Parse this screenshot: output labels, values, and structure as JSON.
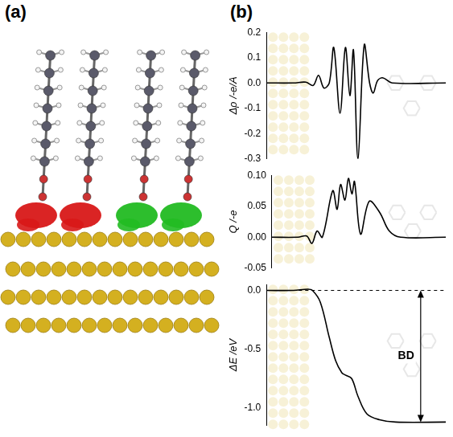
{
  "panel_labels": [
    "(a)",
    "(b)"
  ],
  "chart_data": [
    {
      "type": "line",
      "y_label": "Δρ /-e/A",
      "xlim": [
        0,
        100
      ],
      "ylim": [
        -0.3,
        0.2
      ],
      "yticks": [
        -0.3,
        -0.2,
        -0.1,
        {
          "value": 0,
          "label": "0.0"
        },
        0.1,
        0.2
      ],
      "tick_labels": "y",
      "grid": false,
      "series": [
        {
          "color": "#000000",
          "line_style": "solid",
          "x": [
            0,
            15,
            22,
            26,
            29,
            32,
            35,
            37.5,
            41,
            44,
            46.5,
            48.5,
            51,
            54.5,
            57.5,
            59.5,
            62,
            65,
            70,
            100
          ],
          "values": [
            0,
            0,
            0.003,
            -0.01,
            0.03,
            -0.02,
            0,
            0.14,
            -0.12,
            0.14,
            -0.05,
            0.13,
            -0.3,
            0.15,
            0,
            -0.04,
            0.01,
            0.02,
            0,
            0
          ]
        }
      ]
    },
    {
      "type": "line",
      "y_label": "Q /-e",
      "xlim": [
        0,
        100
      ],
      "ylim": [
        -0.05,
        0.1
      ],
      "yticks": [
        {
          "value": -0.05,
          "label": "-0.05"
        },
        {
          "value": 0,
          "label": "0.00"
        },
        {
          "value": 0.05,
          "label": "0.05"
        },
        {
          "value": 0.1,
          "label": "0.10"
        }
      ],
      "tick_labels": "y",
      "grid": false,
      "series": [
        {
          "color": "#000000",
          "line_style": "solid",
          "x": [
            0,
            15,
            20,
            23,
            26,
            29,
            35,
            37.5,
            39.5,
            42,
            44,
            46,
            47.5,
            51,
            56,
            62,
            67.5,
            74,
            100
          ],
          "values": [
            0,
            0,
            0.002,
            -0.01,
            0.01,
            0,
            0.075,
            0.045,
            0.085,
            0.06,
            0.095,
            0.07,
            0.09,
            0.005,
            0.058,
            0.04,
            0.01,
            0,
            0
          ]
        }
      ]
    },
    {
      "type": "line",
      "y_label": "ΔE /eV",
      "xlim": [
        0,
        100
      ],
      "ylim": [
        -1.15,
        0.05
      ],
      "yticks": [
        {
          "value": -1,
          "label": "-1.0"
        },
        -0.5,
        {
          "value": 0,
          "label": "0.0"
        }
      ],
      "tick_labels": "y",
      "grid": false,
      "series": [
        {
          "color": "#000000",
          "line_style": "solid",
          "x": [
            0,
            15,
            23,
            25.6,
            30,
            35,
            38.6,
            42,
            44,
            47.5,
            51,
            56,
            63,
            72,
            100
          ],
          "values": [
            0,
            0,
            0.01,
            0,
            -0.1,
            -0.4,
            -0.6,
            -0.7,
            -0.72,
            -0.75,
            -0.9,
            -1.05,
            -1.1,
            -1.12,
            -1.12
          ]
        },
        {
          "color": "#000000",
          "line_style": "dashed",
          "x": [
            0,
            100
          ],
          "values": [
            0,
            0
          ]
        }
      ],
      "annotations": [
        {
          "text": "BD",
          "x": 86,
          "from": 0,
          "to": -1.12
        }
      ]
    }
  ]
}
